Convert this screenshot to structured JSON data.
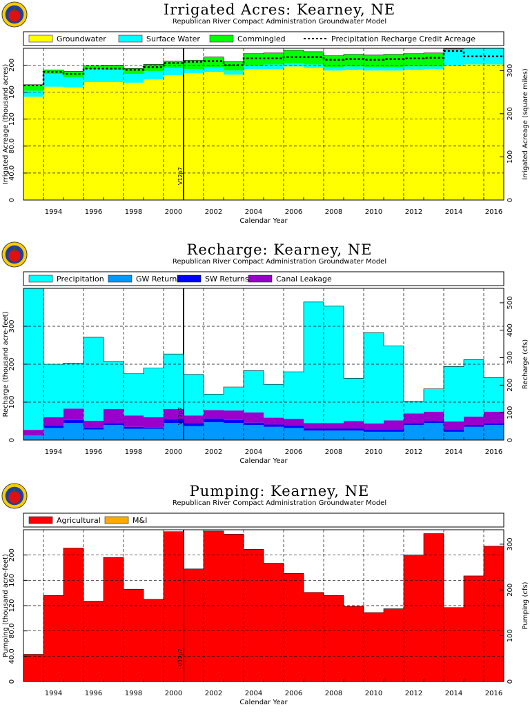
{
  "subtitle": "Republican River Compact Administration Groundwater Model",
  "marker_label": "V12p7",
  "icon": "apple-logo-icon",
  "colors": {
    "groundwater": "#ffff00",
    "surface_water": "#00ffff",
    "commingled": "#00ff00",
    "precipitation": "#00ffff",
    "gw_returns": "#0099ff",
    "sw_returns": "#0000ff",
    "canal_leakage": "#9900cc",
    "agricultural": "#ff0000",
    "mi": "#ffaa00"
  },
  "chart_data": [
    {
      "type": "area",
      "title": "Irrigated Acres: Kearney, NE",
      "xlabel": "Calendar Year",
      "ylabel": "Irrigated Acreage (thousand acres)",
      "y2label": "Irrigated Acreage (square miles)",
      "legend_position": "top",
      "grid": true,
      "x": [
        1993,
        1994,
        1995,
        1996,
        1997,
        1998,
        1999,
        2000,
        2001,
        2002,
        2003,
        2004,
        2005,
        2006,
        2007,
        2008,
        2009,
        2010,
        2011,
        2012,
        2013,
        2014,
        2015,
        2016
      ],
      "xticks": [
        "1994",
        "1996",
        "1998",
        "2000",
        "2002",
        "2004",
        "2006",
        "2008",
        "2010",
        "2012",
        "2014",
        "2016"
      ],
      "ylim": [
        0,
        225
      ],
      "yticks": [
        "0",
        "40.0",
        "80.0",
        "120",
        "160",
        "200"
      ],
      "y2ticks": [
        "0",
        "100",
        "200",
        "300"
      ],
      "stack": [
        {
          "name": "Groundwater",
          "color_key": "groundwater",
          "values": [
            153,
            168,
            167,
            175,
            175,
            174,
            179,
            185,
            188,
            190,
            186,
            194,
            194,
            198,
            196,
            192,
            193,
            192,
            192,
            193,
            194,
            199,
            201,
            201
          ]
        },
        {
          "name": "Surface Water",
          "color_key": "surface_water",
          "values": [
            9,
            19,
            15,
            19,
            18,
            13,
            12,
            11,
            6,
            7,
            6,
            5,
            7,
            5,
            5,
            5,
            5,
            5,
            5,
            5,
            4,
            25,
            24,
            24
          ]
        },
        {
          "name": "Commingled",
          "color_key": "commingled",
          "values": [
            9,
            6,
            9,
            5,
            7,
            8,
            10,
            10,
            13,
            15,
            13,
            18,
            17,
            19,
            19,
            17,
            18,
            18,
            19,
            19,
            20,
            0,
            0,
            0
          ]
        }
      ],
      "dashed_series": {
        "name": "Precipitation Recharge Credit Acreage",
        "values": [
          170,
          190,
          187,
          195,
          195,
          193,
          197,
          203,
          205,
          206,
          200,
          210,
          210,
          212,
          212,
          208,
          209,
          208,
          209,
          210,
          211,
          221,
          213,
          213
        ]
      }
    },
    {
      "type": "area",
      "title": "Recharge: Kearney, NE",
      "xlabel": "Calendar Year",
      "ylabel": "Recharge (thousand acre-feet)",
      "y2label": "Recharge (cfs)",
      "legend_position": "top",
      "grid": true,
      "x": [
        1993,
        1994,
        1995,
        1996,
        1997,
        1998,
        1999,
        2000,
        2001,
        2002,
        2003,
        2004,
        2005,
        2006,
        2007,
        2008,
        2009,
        2010,
        2011,
        2012,
        2013,
        2014,
        2015,
        2016
      ],
      "xticks": [
        "1994",
        "1996",
        "1998",
        "2000",
        "2002",
        "2004",
        "2006",
        "2008",
        "2010",
        "2012",
        "2014",
        "2016"
      ],
      "ylim": [
        0,
        400
      ],
      "yticks": [
        "0",
        "100",
        "200",
        "300"
      ],
      "y2ticks": [
        "0",
        "100",
        "200",
        "300",
        "400",
        "500"
      ],
      "stack": [
        {
          "name": "GW Returns",
          "color_key": "gw_returns",
          "values": [
            12,
            32,
            45,
            28,
            40,
            30,
            30,
            45,
            37,
            47,
            45,
            40,
            35,
            32,
            25,
            25,
            25,
            22,
            22,
            40,
            45,
            22,
            35,
            40
          ]
        },
        {
          "name": "SW Returns",
          "color_key": "sw_returns",
          "values": [
            0,
            6,
            8,
            5,
            5,
            5,
            3,
            10,
            8,
            10,
            8,
            6,
            6,
            6,
            5,
            5,
            5,
            5,
            5,
            5,
            5,
            5,
            5,
            5
          ]
        },
        {
          "name": "Canal Leakage",
          "color_key": "canal_leakage",
          "values": [
            15,
            22,
            30,
            18,
            37,
            30,
            27,
            27,
            20,
            22,
            25,
            27,
            18,
            18,
            15,
            15,
            20,
            17,
            25,
            25,
            25,
            22,
            22,
            30
          ]
        },
        {
          "name": "Precipitation",
          "color_key": "precipitation",
          "values": [
            373,
            140,
            120,
            220,
            125,
            110,
            130,
            145,
            108,
            42,
            62,
            110,
            88,
            124,
            319,
            308,
            113,
            239,
            196,
            32,
            60,
            145,
            150,
            90
          ]
        }
      ]
    },
    {
      "type": "area",
      "title": "Pumping: Kearney, NE",
      "xlabel": "Calendar Year",
      "ylabel": "Pumping (thousand acre-feet)",
      "y2label": "Pumping (cfs)",
      "legend_position": "top",
      "grid": true,
      "x": [
        1993,
        1994,
        1995,
        1996,
        1997,
        1998,
        1999,
        2000,
        2001,
        2002,
        2003,
        2004,
        2005,
        2006,
        2007,
        2008,
        2009,
        2010,
        2011,
        2012,
        2013,
        2014,
        2015,
        2016
      ],
      "xticks": [
        "1994",
        "1996",
        "1998",
        "2000",
        "2002",
        "2004",
        "2006",
        "2008",
        "2010",
        "2012",
        "2014",
        "2016"
      ],
      "ylim": [
        0,
        240
      ],
      "yticks": [
        "0",
        "40.0",
        "80.0",
        "120",
        "160",
        "200"
      ],
      "y2ticks": [
        "0",
        "100",
        "200",
        "300"
      ],
      "stack": [
        {
          "name": "Agricultural",
          "color_key": "agricultural",
          "values": [
            43,
            136,
            211,
            127,
            196,
            146,
            130,
            237,
            178,
            238,
            233,
            209,
            187,
            171,
            141,
            136,
            119,
            109,
            115,
            200,
            234,
            117,
            167,
            214
          ]
        },
        {
          "name": "M&I",
          "color_key": "mi",
          "values": [
            0,
            0,
            0,
            0,
            0,
            0,
            0,
            0,
            0,
            0,
            0,
            0,
            0,
            0,
            0,
            0,
            0,
            0,
            0,
            0,
            0,
            0,
            0,
            0
          ]
        }
      ]
    }
  ]
}
